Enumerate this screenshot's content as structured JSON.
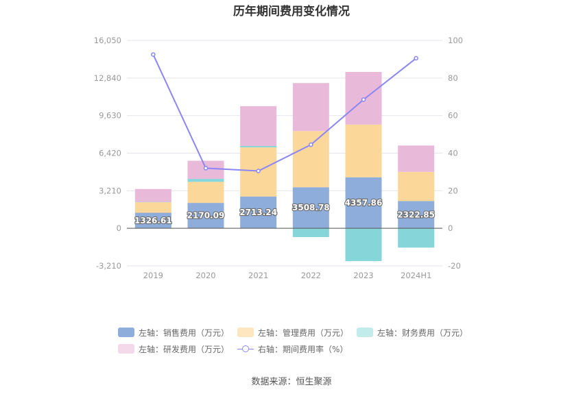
{
  "chart_data": {
    "type": "bar",
    "title": "历年期间费用变化情况",
    "categories": [
      "2019",
      "2020",
      "2021",
      "2022",
      "2023",
      "2024H1"
    ],
    "left_axis": {
      "ticks": [
        "-3,210",
        "0",
        "3,210",
        "6,420",
        "9,630",
        "12,840",
        "16,050"
      ],
      "ylim": [
        -3210,
        16050
      ]
    },
    "right_axis": {
      "ticks": [
        "-20",
        "0",
        "20",
        "40",
        "60",
        "80",
        "100"
      ],
      "ylim": [
        -20,
        100
      ]
    },
    "series": [
      {
        "name": "左轴：销售费用（万元）",
        "color": "#8eadda",
        "values": [
          1326.61,
          2170.09,
          2713.24,
          3508.78,
          4357.86,
          2322.85
        ],
        "labels": [
          "1326.61",
          "2170.09",
          "2713.24",
          "3508.78",
          "4357.86",
          "2322.85"
        ]
      },
      {
        "name": "左轴：管理费用（万元）",
        "color": "#fcd79a",
        "values": [
          900,
          1800,
          4200,
          4800,
          4500,
          2500
        ]
      },
      {
        "name": "左轴：财务费用（万元）",
        "color": "#86d6d9",
        "values": [
          30,
          250,
          120,
          -750,
          -2800,
          -1650
        ]
      },
      {
        "name": "左轴：研发费用（万元）",
        "color": "#e8b9d9",
        "values": [
          1100,
          1550,
          3400,
          4100,
          4500,
          2250
        ]
      }
    ],
    "line_series": {
      "name": "右轴：期间费用率（%）",
      "color": "#8a86f5",
      "values": [
        92.5,
        32,
        30.5,
        44.5,
        68.5,
        90.5
      ]
    }
  },
  "source": "数据来源：恒生聚源"
}
